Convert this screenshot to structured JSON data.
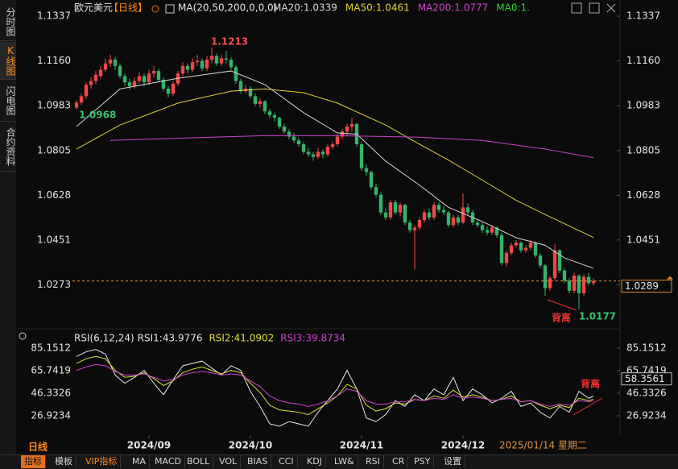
{
  "ui": {
    "sidebar": [
      "分时图",
      "K线图",
      "闪电图",
      "合约资料"
    ],
    "active_tab": 1,
    "period_label": "日线",
    "toolbar": [
      "指标",
      "模板",
      "VIP指标",
      "MA",
      "MACD",
      "BOLL",
      "VOL",
      "BIAS",
      "CCI",
      "KDJ",
      "LW&",
      "RSI",
      "CR",
      "PSY",
      "设置"
    ],
    "active_tool": 0
  },
  "header": {
    "symbol": "欧元美元",
    "period": "【日线】",
    "indicator": "MA(20,50,200,0,0,0)",
    "extra": {
      "text": "MA0:1.",
      "color": "#30d030"
    }
  },
  "chart_data": [
    {
      "type": "candlestick",
      "up_color": "#f04848",
      "down_color": "#36b36b",
      "ylim": [
        1.0125,
        1.1385
      ],
      "yticks": [
        1.1337,
        {
          "value": 1.116,
          "label": "1.1160"
        },
        1.0983,
        1.0805,
        1.0628,
        1.0451,
        1.0273
      ],
      "xticks": [
        {
          "value": 15,
          "label": "2024/09"
        },
        {
          "value": 36,
          "label": "2024/10"
        },
        {
          "value": 59,
          "label": "2024/11"
        },
        {
          "value": 80,
          "label": "2024/12"
        }
      ],
      "cursor_date": "2025/01/14 星期二",
      "current_price": 1.0289,
      "annotations": [
        {
          "text": "1.1213",
          "color": "#f05050"
        },
        {
          "text": "1.0968",
          "color": "#3cc070"
        },
        {
          "text": "1.0177",
          "color": "#3cc070"
        },
        {
          "text": "背离",
          "color": "#f03030"
        }
      ],
      "candles": [
        [
          1.0975,
          1.1005,
          1.0968,
          1.0995
        ],
        [
          1.0995,
          1.103,
          1.0985,
          1.102
        ],
        [
          1.102,
          1.1075,
          1.101,
          1.1065
        ],
        [
          1.1065,
          1.1095,
          1.105,
          1.108
        ],
        [
          1.108,
          1.112,
          1.107,
          1.1105
        ],
        [
          1.11,
          1.114,
          1.109,
          1.1125
        ],
        [
          1.1125,
          1.117,
          1.1115,
          1.115
        ],
        [
          1.115,
          1.1185,
          1.1135,
          1.1165
        ],
        [
          1.1165,
          1.1175,
          1.1125,
          1.114
        ],
        [
          1.114,
          1.115,
          1.109,
          1.11
        ],
        [
          1.11,
          1.111,
          1.106,
          1.1075
        ],
        [
          1.1075,
          1.109,
          1.1045,
          1.106
        ],
        [
          1.106,
          1.1095,
          1.105,
          1.108
        ],
        [
          1.108,
          1.1115,
          1.107,
          1.11
        ],
        [
          1.11,
          1.111,
          1.106,
          1.1075
        ],
        [
          1.1075,
          1.1125,
          1.1065,
          1.111
        ],
        [
          1.111,
          1.114,
          1.1095,
          1.112
        ],
        [
          1.112,
          1.113,
          1.1075,
          1.1085
        ],
        [
          1.1085,
          1.1095,
          1.104,
          1.105
        ],
        [
          1.105,
          1.106,
          1.1015,
          1.103
        ],
        [
          1.103,
          1.108,
          1.102,
          1.107
        ],
        [
          1.107,
          1.112,
          1.106,
          1.111
        ],
        [
          1.111,
          1.1155,
          1.11,
          1.114
        ],
        [
          1.114,
          1.115,
          1.111,
          1.1125
        ],
        [
          1.1125,
          1.117,
          1.1115,
          1.1155
        ],
        [
          1.1155,
          1.1185,
          1.114,
          1.116
        ],
        [
          1.116,
          1.117,
          1.112,
          1.113
        ],
        [
          1.113,
          1.118,
          1.112,
          1.1165
        ],
        [
          1.1165,
          1.1213,
          1.115,
          1.118
        ],
        [
          1.118,
          1.119,
          1.114,
          1.115
        ],
        [
          1.115,
          1.1185,
          1.114,
          1.117
        ],
        [
          1.117,
          1.12,
          1.115,
          1.1165
        ],
        [
          1.1165,
          1.1175,
          1.1125,
          1.1135
        ],
        [
          1.1135,
          1.1145,
          1.107,
          1.108
        ],
        [
          1.108,
          1.109,
          1.103,
          1.104
        ],
        [
          1.104,
          1.1065,
          1.103,
          1.105
        ],
        [
          1.105,
          1.106,
          1.101,
          1.102
        ],
        [
          1.102,
          1.103,
          1.098,
          1.099
        ],
        [
          1.099,
          1.101,
          1.0975,
          1.1
        ],
        [
          1.1,
          1.1005,
          1.095,
          1.096
        ],
        [
          1.096,
          1.097,
          1.0935,
          1.0945
        ],
        [
          1.0945,
          1.0955,
          1.092,
          1.0935
        ],
        [
          1.0935,
          1.094,
          1.089,
          1.09
        ],
        [
          1.09,
          1.091,
          1.087,
          1.088
        ],
        [
          1.088,
          1.089,
          1.085,
          1.086
        ],
        [
          1.086,
          1.0875,
          1.0835,
          1.0845
        ],
        [
          1.0845,
          1.0855,
          1.082,
          1.083
        ],
        [
          1.083,
          1.084,
          1.079,
          1.08
        ],
        [
          1.08,
          1.0815,
          1.078,
          1.079
        ],
        [
          1.079,
          1.08,
          1.0765,
          1.078
        ],
        [
          1.078,
          1.0815,
          1.077,
          1.08
        ],
        [
          1.08,
          1.081,
          1.0775,
          1.079
        ],
        [
          1.079,
          1.083,
          1.078,
          1.082
        ],
        [
          1.082,
          1.084,
          1.081,
          1.083
        ],
        [
          1.083,
          1.087,
          1.082,
          1.086
        ],
        [
          1.086,
          1.089,
          1.085,
          1.088
        ],
        [
          1.088,
          1.091,
          1.086,
          1.09
        ],
        [
          1.09,
          1.0935,
          1.088,
          1.091
        ],
        [
          1.091,
          1.0915,
          1.082,
          1.083
        ],
        [
          1.083,
          1.084,
          1.0725,
          1.0735
        ],
        [
          1.0735,
          1.075,
          1.0705,
          1.072
        ],
        [
          1.072,
          1.0725,
          1.065,
          1.066
        ],
        [
          1.066,
          1.0675,
          1.062,
          1.063
        ],
        [
          1.063,
          1.064,
          1.055,
          1.056
        ],
        [
          1.056,
          1.0575,
          1.053,
          1.054
        ],
        [
          1.054,
          1.061,
          1.053,
          1.06
        ],
        [
          1.06,
          1.061,
          1.055,
          1.056
        ],
        [
          1.056,
          1.06,
          1.0545,
          1.059
        ],
        [
          1.059,
          1.0595,
          1.051,
          1.052
        ],
        [
          1.052,
          1.053,
          1.048,
          1.049
        ],
        [
          1.049,
          1.051,
          1.0335,
          1.05
        ],
        [
          1.05,
          1.054,
          1.049,
          1.053
        ],
        [
          1.053,
          1.057,
          1.052,
          1.056
        ],
        [
          1.056,
          1.0575,
          1.053,
          1.054
        ],
        [
          1.054,
          1.06,
          1.053,
          1.059
        ],
        [
          1.059,
          1.06,
          1.056,
          1.057
        ],
        [
          1.057,
          1.0585,
          1.055,
          1.056
        ],
        [
          1.056,
          1.0565,
          1.05,
          1.051
        ],
        [
          1.051,
          1.055,
          1.05,
          1.054
        ],
        [
          1.054,
          1.055,
          1.051,
          1.052
        ],
        [
          1.052,
          1.0635,
          1.0515,
          1.058
        ],
        [
          1.058,
          1.0595,
          1.055,
          1.056
        ],
        [
          1.056,
          1.057,
          1.051,
          1.052
        ],
        [
          1.052,
          1.053,
          1.05,
          1.051
        ],
        [
          1.051,
          1.052,
          1.048,
          1.049
        ],
        [
          1.049,
          1.0505,
          1.047,
          1.048
        ],
        [
          1.048,
          1.051,
          1.047,
          1.05
        ],
        [
          1.05,
          1.0505,
          1.046,
          1.047
        ],
        [
          1.047,
          1.048,
          1.035,
          1.036
        ],
        [
          1.036,
          1.041,
          1.0345,
          1.04
        ],
        [
          1.04,
          1.044,
          1.039,
          1.043
        ],
        [
          1.043,
          1.045,
          1.042,
          1.044
        ],
        [
          1.044,
          1.0445,
          1.04,
          1.041
        ],
        [
          1.041,
          1.043,
          1.04,
          1.042
        ],
        [
          1.042,
          1.045,
          1.041,
          1.044
        ],
        [
          1.044,
          1.0445,
          1.038,
          1.039
        ],
        [
          1.039,
          1.04,
          1.034,
          1.035
        ],
        [
          1.035,
          1.0355,
          1.023,
          1.026
        ],
        [
          1.026,
          1.031,
          1.025,
          1.03
        ],
        [
          1.03,
          1.0435,
          1.029,
          1.041
        ],
        [
          1.041,
          1.0415,
          1.032,
          1.033
        ],
        [
          1.033,
          1.034,
          1.028,
          1.029
        ],
        [
          1.029,
          1.03,
          1.024,
          1.025
        ],
        [
          1.025,
          1.032,
          1.024,
          1.031
        ],
        [
          1.031,
          1.0315,
          1.0177,
          1.024
        ],
        [
          1.024,
          1.0315,
          1.023,
          1.0305
        ],
        [
          1.0305,
          1.032,
          1.027,
          1.028
        ],
        [
          1.028,
          1.03,
          1.027,
          1.0289
        ]
      ],
      "series": [
        {
          "name": "MA20:1.0339",
          "color": "#d8d8d8",
          "x": [
            0,
            9,
            21,
            32,
            39,
            47,
            54,
            58,
            64,
            71,
            77,
            84,
            91,
            97,
            101,
            107
          ],
          "values": [
            1.09,
            1.1049,
            1.1091,
            1.112,
            1.1066,
            1.0955,
            1.0875,
            1.087,
            1.0763,
            1.0668,
            1.058,
            1.0524,
            1.046,
            1.043,
            1.038,
            1.0339
          ]
        },
        {
          "name": "MA50:1.0461",
          "color": "#e0d040",
          "x": [
            0,
            9,
            21,
            32,
            39,
            47,
            54,
            64,
            71,
            77,
            84,
            91,
            97,
            107
          ],
          "values": [
            1.0811,
            1.0906,
            1.0993,
            1.104,
            1.1049,
            1.1034,
            1.0993,
            1.0906,
            1.083,
            1.0767,
            1.0688,
            1.0608,
            1.0552,
            1.0461
          ]
        },
        {
          "name": "MA200:1.0777",
          "color": "#d040d0",
          "x": [
            7,
            21,
            39,
            54,
            71,
            84,
            97,
            107
          ],
          "values": [
            1.0845,
            1.0854,
            1.0864,
            1.0864,
            1.0858,
            1.0845,
            1.0811,
            1.0777
          ]
        }
      ]
    },
    {
      "type": "line",
      "title": "RSI(6,12,24)",
      "ylim": [
        13.75,
        90
      ],
      "yticks": [
        85.1512,
        65.7419,
        46.3326,
        26.9234
      ],
      "cursor_value": 58.3561,
      "annotations": [
        {
          "text": "背离",
          "color": "#f03030"
        }
      ],
      "x": [
        0,
        2,
        4,
        6,
        8,
        10,
        12,
        14,
        16,
        18,
        20,
        22,
        24,
        26,
        28,
        30,
        32,
        34,
        36,
        38,
        40,
        42,
        44,
        46,
        48,
        50,
        52,
        54,
        56,
        58,
        60,
        62,
        64,
        66,
        68,
        70,
        72,
        74,
        76,
        78,
        80,
        82,
        84,
        86,
        88,
        90,
        92,
        94,
        96,
        98,
        100,
        102,
        104,
        106,
        107
      ],
      "series": [
        {
          "name": "RSI1:43.9776",
          "color": "#e8e8e8",
          "values": [
            78,
            82,
            84,
            80,
            62,
            55,
            60,
            66,
            55,
            45,
            58,
            70,
            72,
            74,
            68,
            62,
            70,
            66,
            48,
            35,
            20,
            18,
            22,
            20,
            18,
            30,
            40,
            50,
            66,
            50,
            25,
            22,
            28,
            40,
            35,
            45,
            40,
            50,
            45,
            60,
            40,
            50,
            45,
            38,
            42,
            48,
            35,
            38,
            30,
            25,
            35,
            30,
            48,
            42,
            43.9776
          ]
        },
        {
          "name": "RSI2:41.0902",
          "color": "#e0e040",
          "values": [
            72,
            76,
            78,
            76,
            66,
            60,
            61,
            64,
            59,
            53,
            57,
            64,
            67,
            69,
            66,
            63,
            66,
            64,
            55,
            47,
            36,
            32,
            31,
            30,
            28,
            33,
            38,
            44,
            54,
            50,
            36,
            31,
            33,
            38,
            37,
            41,
            40,
            44,
            42,
            49,
            43,
            45,
            43,
            40,
            41,
            44,
            39,
            40,
            36,
            33,
            36,
            34,
            42,
            40,
            41.0902
          ]
        },
        {
          "name": "RSI3:39.8734",
          "color": "#d040d0",
          "values": [
            66,
            69,
            71,
            70,
            65,
            62,
            62,
            63,
            60,
            57,
            58,
            62,
            64,
            65,
            64,
            62,
            63,
            62,
            57,
            52,
            44,
            40,
            38,
            37,
            35,
            37,
            40,
            44,
            50,
            48,
            40,
            37,
            37,
            39,
            39,
            41,
            40,
            42,
            41,
            45,
            42,
            43,
            42,
            40,
            41,
            42,
            39,
            40,
            37,
            35,
            37,
            36,
            40,
            39,
            39.8734
          ]
        }
      ]
    }
  ]
}
